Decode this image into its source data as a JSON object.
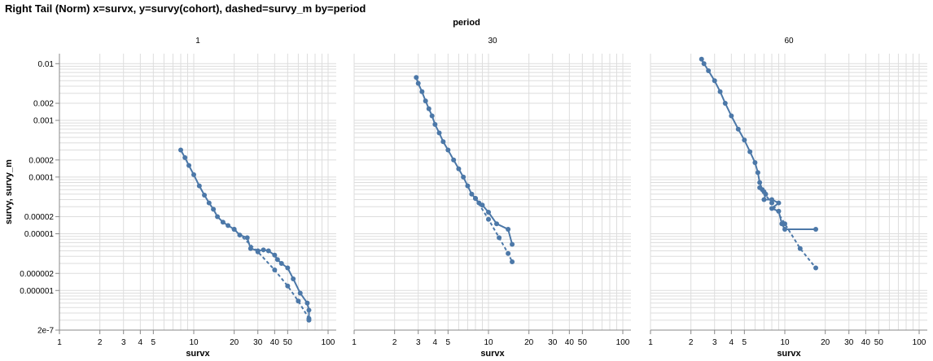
{
  "title": "Right Tail (Norm) x=survx, y=survy(cohort), dashed=survy_m by=period",
  "facet_field": "period",
  "colors": {
    "series": "#4c78a8",
    "grid": "#dddddd",
    "axis": "#888888"
  },
  "chart_data": {
    "type": "line",
    "facet_by": "period",
    "x_scale": "log",
    "y_scale": "log",
    "xlabel": "survx",
    "ylabel": "survy, survy_m",
    "xlim": [
      1,
      100
    ],
    "ylim": [
      2e-07,
      0.01
    ],
    "grid": true,
    "x_tick_labels": [
      "1",
      "2",
      "3",
      "4",
      "5",
      "10",
      "20",
      "30",
      "40",
      "50",
      "100"
    ],
    "y_tick_labels": [
      "0.01",
      "0.002",
      "0.001",
      "0.0002",
      "0.0001",
      "0.00002",
      "0.00001",
      "0.000002",
      "0.000001",
      "2e-7"
    ],
    "facets": [
      {
        "label": "1",
        "series": [
          {
            "name": "survy",
            "x": [
              8.0,
              8.6,
              9.2,
              10.0,
              11.0,
              12.0,
              13.0,
              14.0,
              15.0,
              16.5,
              18.0,
              20.0,
              22.0,
              25.0,
              26.5,
              30.0,
              33.0,
              36.0,
              40.0,
              42.0,
              45.0,
              50.0,
              55.0,
              62.0,
              70.0,
              72.0,
              72.0
            ],
            "y": [
              0.0003,
              0.00022,
              0.00016,
              0.00011,
              7e-05,
              4.8e-05,
              3.5e-05,
              2.7e-05,
              2e-05,
              1.6e-05,
              1.4e-05,
              1.2e-05,
              9.5e-06,
              8.5e-06,
              5.5e-06,
              5e-06,
              5.2e-06,
              5e-06,
              4.2e-06,
              3.5e-06,
              3e-06,
              2.5e-06,
              1.6e-06,
              9e-07,
              6e-07,
              4.5e-07,
              3e-07
            ]
          },
          {
            "name": "survy_m",
            "x": [
              20.0,
              30.0,
              40.0,
              50.0,
              60.0,
              72.0
            ],
            "y": [
              1.2e-05,
              4.8e-06,
              2.3e-06,
              1.2e-06,
              6.5e-07,
              3.2e-07
            ]
          }
        ]
      },
      {
        "label": "30",
        "series": [
          {
            "name": "survy",
            "x": [
              2.9,
              3.0,
              3.2,
              3.4,
              3.6,
              3.8,
              4.0,
              4.3,
              4.6,
              5.0,
              5.5,
              6.0,
              6.5,
              7.0,
              7.5,
              8.0,
              8.5,
              9.0,
              10.0,
              11.5,
              14.0,
              15.0
            ],
            "y": [
              0.0057,
              0.0045,
              0.0032,
              0.0022,
              0.0016,
              0.0012,
              0.00085,
              0.0006,
              0.00042,
              0.0003,
              0.0002,
              0.00014,
              0.0001,
              7e-05,
              5e-05,
              4.2e-05,
              3.5e-05,
              3.2e-05,
              2.4e-05,
              1.5e-05,
              1.2e-05,
              6.5e-06
            ]
          },
          {
            "name": "survy_m",
            "x": [
              8.0,
              10.0,
              12.0,
              14.0,
              15.0
            ],
            "y": [
              4.2e-05,
              1.8e-05,
              8.5e-06,
              4.5e-06,
              3.2e-06
            ]
          }
        ]
      },
      {
        "label": "60",
        "series": [
          {
            "name": "survy",
            "x": [
              2.4,
              2.5,
              2.7,
              3.0,
              3.3,
              3.6,
              4.0,
              4.5,
              5.0,
              5.5,
              6.0,
              6.3,
              6.5,
              6.8,
              7.0,
              7.2,
              7.0,
              8.0,
              9.0,
              8.0,
              9.0,
              9.5,
              10.0,
              17.0
            ],
            "y": [
              0.012,
              0.01,
              0.0075,
              0.005,
              0.0032,
              0.002,
              0.0012,
              0.0007,
              0.00045,
              0.00028,
              0.00018,
              0.00012,
              8e-05,
              6e-05,
              5.5e-05,
              5e-05,
              4e-05,
              4e-05,
              3.5e-05,
              2.8e-05,
              2.5e-05,
              1.5e-05,
              1.2e-05,
              1.2e-05
            ]
          },
          {
            "name": "survy_m",
            "x": [
              6.5,
              8.0,
              10.0,
              13.0,
              17.0
            ],
            "y": [
              6.5e-05,
              3.5e-05,
              1.5e-05,
              5.5e-06,
              2.5e-06
            ]
          }
        ]
      }
    ]
  }
}
